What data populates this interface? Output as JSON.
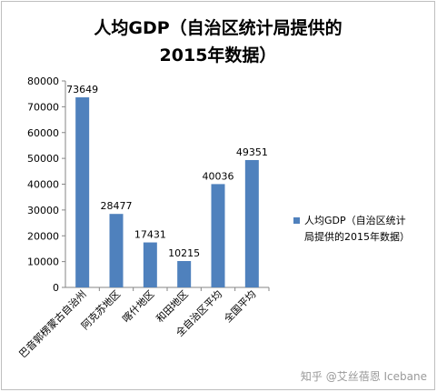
{
  "chart_data": {
    "type": "bar",
    "title_lines": [
      "人均GDP（自治区统计局提供的",
      "2015年数据）"
    ],
    "categories": [
      "巴音郭楞蒙古自治州",
      "阿克苏地区",
      "喀什地区",
      "和田地区",
      "全自治区平均",
      "全国平均"
    ],
    "series": [
      {
        "name": "人均GDP（自治区统计局提供的2015年数据）",
        "values": [
          73649,
          28477,
          17431,
          10215,
          40036,
          49351
        ]
      }
    ],
    "ylim": [
      0,
      80000
    ],
    "yticks": [
      0,
      10000,
      20000,
      30000,
      40000,
      50000,
      60000,
      70000,
      80000
    ],
    "grid": false,
    "legend_position": "right",
    "legend_lines": [
      "人均GDP（自治区统计",
      "局提供的2015年数据）"
    ],
    "bar_color": "#4f81bd",
    "xlabel": "",
    "ylabel": ""
  },
  "watermark": "知乎 @艾丝蓓恩 Icebane"
}
